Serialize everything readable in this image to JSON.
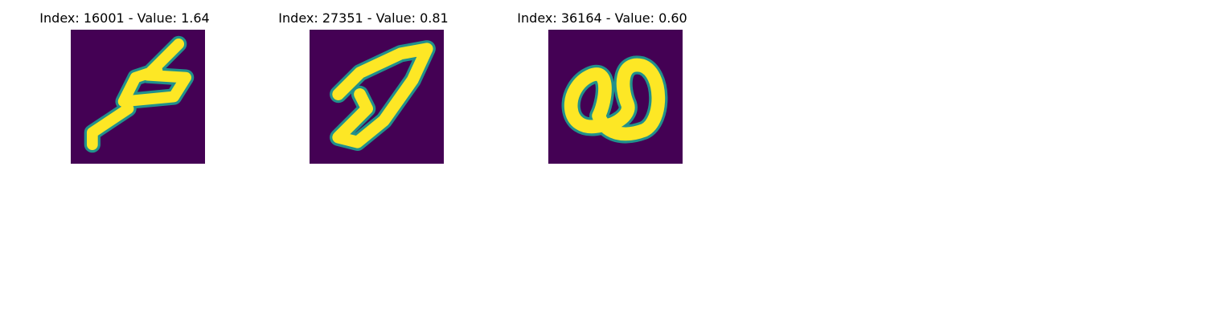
{
  "figure": {
    "colormap": "viridis",
    "background_color": "#440154",
    "stroke_color": "#fde725",
    "edge_color": "#21918c",
    "panels": [
      {
        "title": "Index: 16001 - Value: 1.64",
        "glyph": "slanted-five"
      },
      {
        "title": "Index: 27351 - Value: 0.81",
        "glyph": "slanted-seven"
      },
      {
        "title": "Index: 36164 - Value: 0.60",
        "glyph": "looped-two"
      }
    ]
  }
}
